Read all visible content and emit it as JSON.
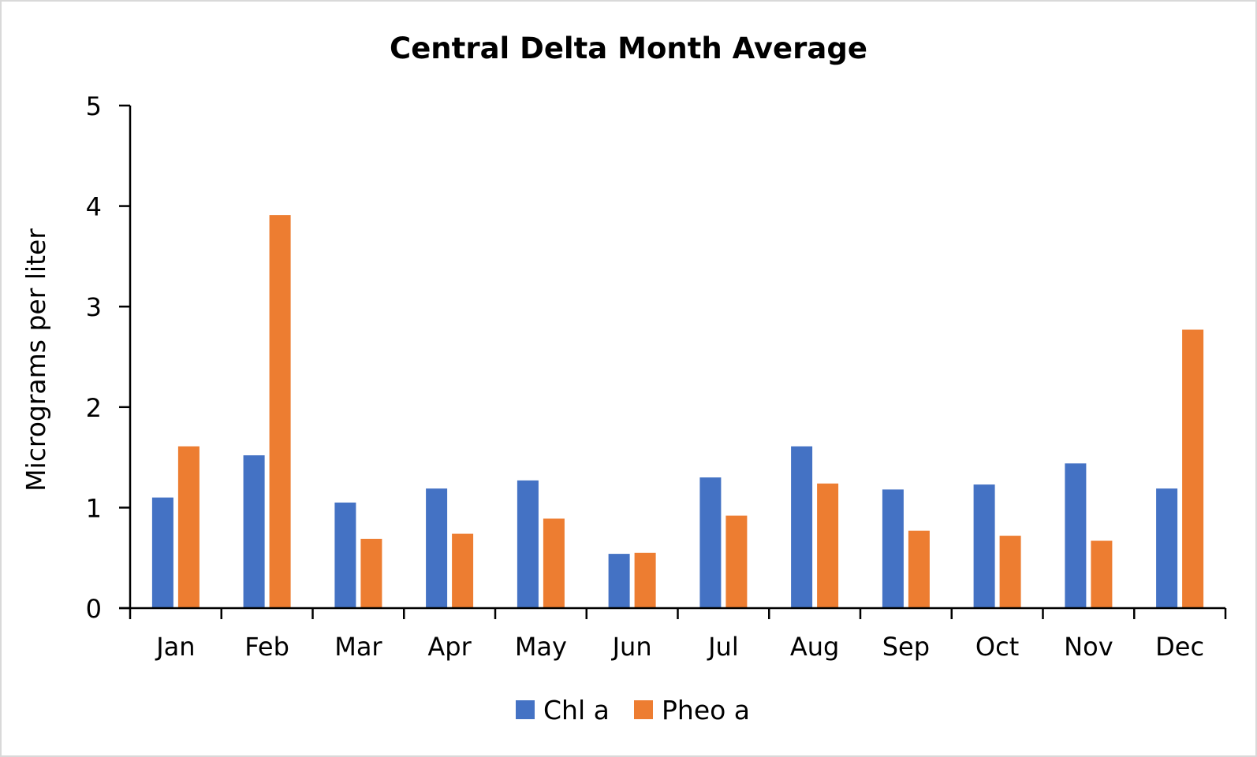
{
  "chart_data": {
    "type": "bar",
    "title": "Central Delta Month Average",
    "xlabel": "",
    "ylabel": "Micrograms per liter",
    "categories": [
      "Jan",
      "Feb",
      "Mar",
      "Apr",
      "May",
      "Jun",
      "Jul",
      "Aug",
      "Sep",
      "Oct",
      "Nov",
      "Dec"
    ],
    "series": [
      {
        "name": "Chl a",
        "color": "#4472C4",
        "values": [
          1.1,
          1.52,
          1.05,
          1.19,
          1.27,
          0.54,
          1.3,
          1.61,
          1.18,
          1.23,
          1.44,
          1.19
        ]
      },
      {
        "name": "Pheo a",
        "color": "#ED7D31",
        "values": [
          1.61,
          3.91,
          0.69,
          0.74,
          0.89,
          0.55,
          0.92,
          1.24,
          0.77,
          0.72,
          0.67,
          2.77
        ]
      }
    ],
    "ylim": [
      0,
      5
    ],
    "yticks": [
      "0",
      "1",
      "2",
      "3",
      "4",
      "5"
    ],
    "grid": false,
    "legend_position": "bottom"
  }
}
